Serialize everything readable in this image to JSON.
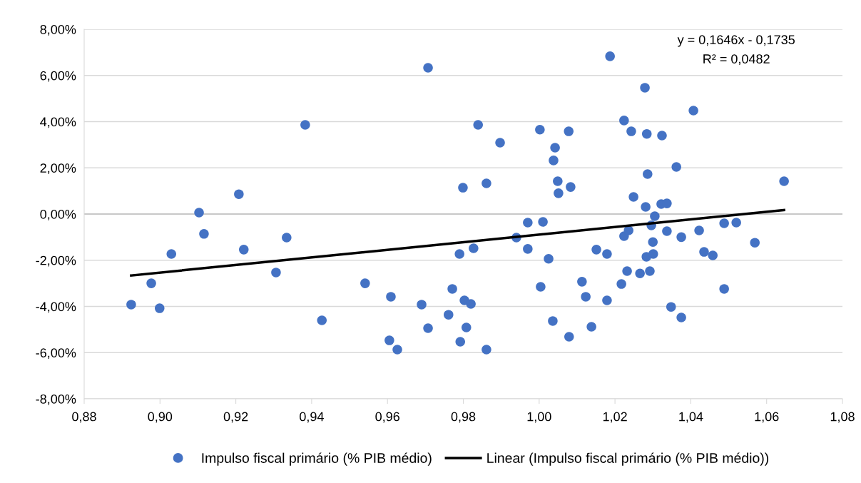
{
  "chart_data": {
    "type": "scatter",
    "xlim": [
      0.88,
      1.08
    ],
    "xticks": [
      {
        "value": 0.88,
        "label": "0,88"
      },
      {
        "value": 0.9,
        "label": "0,90"
      },
      {
        "value": 0.92,
        "label": "0,92"
      },
      {
        "value": 0.94,
        "label": "0,94"
      },
      {
        "value": 0.96,
        "label": "0,96"
      },
      {
        "value": 0.98,
        "label": "0,98"
      },
      {
        "value": 1.0,
        "label": "1,00"
      },
      {
        "value": 1.02,
        "label": "1,02"
      },
      {
        "value": 1.04,
        "label": "1,04"
      },
      {
        "value": 1.06,
        "label": "1,06"
      },
      {
        "value": 1.08,
        "label": "1,08"
      }
    ],
    "ylim": [
      -8,
      8
    ],
    "yticks": [
      {
        "value": -8,
        "label": "-8,00%"
      },
      {
        "value": -6,
        "label": "-6,00%"
      },
      {
        "value": -4,
        "label": "-4,00%"
      },
      {
        "value": -2,
        "label": "-2,00%"
      },
      {
        "value": 0,
        "label": "0,00%"
      },
      {
        "value": 2,
        "label": "2,00%"
      },
      {
        "value": 4,
        "label": "4,00%"
      },
      {
        "value": 6,
        "label": "6,00%"
      },
      {
        "value": 8,
        "label": "8,00%"
      }
    ],
    "grid": "y",
    "legend": "bottom",
    "annotations": [
      "y = 0,1646x - 0,1735",
      "R² = 0,0482"
    ],
    "series": [
      {
        "name": "Impulso fiscal primário (% PIB médio)",
        "marker": "circle",
        "color": "#4472c4",
        "x": [
          0.8924,
          0.8977,
          0.8999,
          0.903,
          0.9103,
          0.9116,
          0.9208,
          0.9221,
          0.9306,
          0.9334,
          0.9383,
          0.9427,
          0.9541,
          0.9605,
          0.9609,
          0.9626,
          0.969,
          0.9707,
          0.9707,
          0.9761,
          0.9771,
          0.9792,
          0.979,
          0.9803,
          0.9808,
          0.9799,
          0.982,
          0.9827,
          0.9839,
          0.9861,
          0.9861,
          0.9897,
          0.994,
          0.997,
          0.997,
          1.0002,
          1.0004,
          1.001,
          1.0025,
          1.0036,
          1.0038,
          1.0042,
          1.0051,
          1.0049,
          1.0078,
          1.0079,
          1.0083,
          1.0113,
          1.0123,
          1.0138,
          1.0151,
          1.0179,
          1.0179,
          1.0187,
          1.0217,
          1.0224,
          1.0224,
          1.0232,
          1.0236,
          1.0243,
          1.0249,
          1.0266,
          1.0279,
          1.0283,
          1.0284,
          1.0286,
          1.0281,
          1.0292,
          1.0296,
          1.0301,
          1.03,
          1.0305,
          1.0324,
          1.0322,
          1.0337,
          1.0337,
          1.0348,
          1.0362,
          1.0375,
          1.0375,
          1.0407,
          1.0422,
          1.0435,
          1.0458,
          1.0488,
          1.0488,
          1.052,
          1.0569,
          1.0646
        ],
        "values": [
          -3.92,
          -3.0,
          -4.08,
          -1.73,
          0.06,
          -0.86,
          0.86,
          -1.54,
          -2.53,
          -1.02,
          3.86,
          -4.6,
          -3.0,
          -5.47,
          -3.58,
          -5.87,
          -3.92,
          6.33,
          -4.94,
          -4.36,
          -3.24,
          -5.53,
          -1.73,
          -3.74,
          -4.91,
          1.14,
          -3.89,
          -1.48,
          3.86,
          -5.87,
          1.33,
          3.09,
          -1.02,
          -0.37,
          -1.51,
          3.65,
          -3.15,
          -0.34,
          -1.94,
          -4.63,
          2.32,
          2.87,
          0.9,
          1.42,
          3.58,
          -5.31,
          1.17,
          -2.93,
          -3.58,
          -4.88,
          -1.54,
          -1.73,
          -3.74,
          6.83,
          -3.03,
          4.05,
          -0.96,
          -2.47,
          -0.71,
          3.58,
          0.74,
          -2.57,
          5.47,
          -1.85,
          3.47,
          1.73,
          0.31,
          -2.47,
          -0.49,
          -1.73,
          -1.21,
          -0.09,
          3.4,
          0.43,
          -0.74,
          0.46,
          -4.02,
          2.04,
          -1.0,
          -4.48,
          4.48,
          -0.71,
          -1.64,
          -1.79,
          -0.4,
          -3.24,
          -0.37,
          -1.24,
          1.42
        ]
      },
      {
        "name": "Linear (Impulso fiscal primário (% PIB médio))",
        "type": "line",
        "color": "#000000",
        "x": [
          0.8924,
          1.0646
        ],
        "values": [
          -2.66,
          0.17
        ]
      }
    ]
  }
}
